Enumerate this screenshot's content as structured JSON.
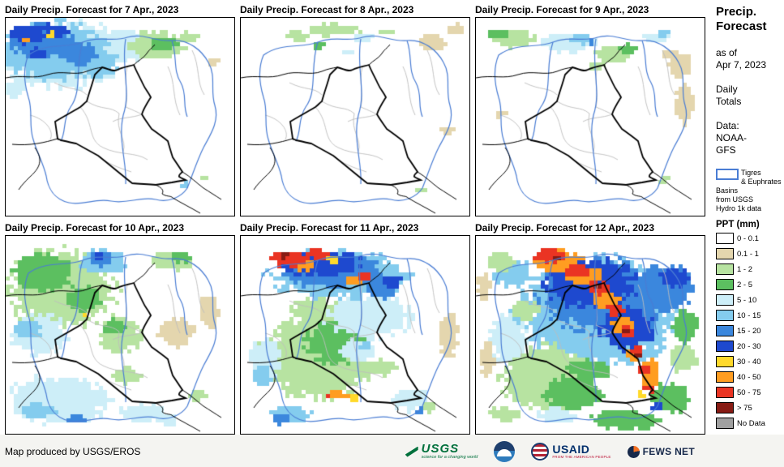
{
  "panels": [
    {
      "title": "Daily Precip. Forecast for 7 Apr., 2023",
      "blobs": [
        [
          70,
          45,
          85,
          48,
          "pcyan"
        ],
        [
          150,
          35,
          40,
          22,
          "pcyan"
        ],
        [
          12,
          88,
          14,
          12,
          "pcyan"
        ],
        [
          60,
          40,
          72,
          40,
          "lblue"
        ],
        [
          110,
          55,
          35,
          20,
          "lblue"
        ],
        [
          45,
          28,
          48,
          24,
          "mblue"
        ],
        [
          90,
          45,
          25,
          15,
          "mblue"
        ],
        [
          28,
          20,
          26,
          14,
          "blue"
        ],
        [
          62,
          16,
          20,
          10,
          "blue"
        ],
        [
          40,
          45,
          14,
          8,
          "blue"
        ],
        [
          56,
          20,
          6,
          4,
          "yellow"
        ],
        [
          24,
          28,
          5,
          3,
          "orange"
        ],
        [
          185,
          35,
          40,
          20,
          "lgreen"
        ],
        [
          195,
          32,
          18,
          10,
          "green"
        ],
        [
          228,
          24,
          16,
          8,
          "lgreen"
        ],
        [
          255,
          55,
          10,
          6,
          "tan"
        ],
        [
          220,
          206,
          9,
          5,
          "lblue"
        ],
        [
          246,
          196,
          6,
          4,
          "lgreen"
        ]
      ]
    },
    {
      "title": "Daily Precip. Forecast for 8 Apr., 2023",
      "blobs": [
        [
          115,
          15,
          35,
          9,
          "lgreen"
        ],
        [
          70,
          22,
          18,
          7,
          "lgreen"
        ],
        [
          95,
          35,
          10,
          5,
          "green"
        ],
        [
          150,
          25,
          15,
          6,
          "pcyan"
        ],
        [
          130,
          42,
          8,
          4,
          "pcyan"
        ],
        [
          235,
          30,
          22,
          12,
          "tan"
        ],
        [
          265,
          15,
          12,
          8,
          "tan"
        ],
        [
          180,
          18,
          12,
          5,
          "lgreen"
        ],
        [
          255,
          140,
          10,
          6,
          "tan"
        ],
        [
          222,
          212,
          7,
          4,
          "lgreen"
        ]
      ]
    },
    {
      "title": "Daily Precip. Forecast for 9 Apr., 2023",
      "blobs": [
        [
          45,
          25,
          32,
          14,
          "lgreen"
        ],
        [
          28,
          20,
          14,
          7,
          "green"
        ],
        [
          90,
          30,
          12,
          6,
          "pcyan"
        ],
        [
          115,
          30,
          38,
          14,
          "pcyan"
        ],
        [
          128,
          26,
          16,
          8,
          "lblue"
        ],
        [
          143,
          30,
          7,
          4,
          "mblue"
        ],
        [
          170,
          45,
          26,
          12,
          "lgreen"
        ],
        [
          150,
          60,
          10,
          5,
          "lgreen"
        ],
        [
          188,
          38,
          14,
          7,
          "green"
        ],
        [
          222,
          25,
          18,
          8,
          "pcyan"
        ],
        [
          232,
          20,
          8,
          5,
          "lblue"
        ],
        [
          252,
          60,
          16,
          18,
          "tan"
        ],
        [
          258,
          105,
          14,
          30,
          "tan"
        ],
        [
          240,
          45,
          12,
          8,
          "tan"
        ],
        [
          30,
          118,
          10,
          6,
          "tan"
        ],
        [
          232,
          200,
          8,
          5,
          "lgreen"
        ]
      ]
    },
    {
      "title": "Daily Precip. Forecast for 10 Apr., 2023",
      "blobs": [
        [
          70,
          65,
          75,
          55,
          "lgreen"
        ],
        [
          205,
          30,
          32,
          14,
          "lgreen"
        ],
        [
          140,
          122,
          32,
          26,
          "lgreen"
        ],
        [
          237,
          196,
          15,
          8,
          "lgreen"
        ],
        [
          150,
          172,
          20,
          12,
          "lgreen"
        ],
        [
          45,
          45,
          40,
          28,
          "green"
        ],
        [
          95,
          78,
          28,
          18,
          "green"
        ],
        [
          135,
          112,
          16,
          11,
          "green"
        ],
        [
          218,
          26,
          14,
          8,
          "green"
        ],
        [
          42,
          122,
          40,
          28,
          "pcyan"
        ],
        [
          65,
          202,
          72,
          33,
          "pcyan"
        ],
        [
          170,
          218,
          32,
          13,
          "pcyan"
        ],
        [
          200,
          228,
          15,
          8,
          "pcyan"
        ],
        [
          28,
          116,
          18,
          13,
          "lblue"
        ],
        [
          120,
          32,
          32,
          18,
          "lblue"
        ],
        [
          40,
          216,
          26,
          12,
          "lblue"
        ],
        [
          118,
          28,
          18,
          11,
          "mblue"
        ],
        [
          88,
          227,
          12,
          6,
          "mblue"
        ],
        [
          114,
          25,
          9,
          6,
          "blue"
        ],
        [
          210,
          120,
          26,
          20,
          "tan"
        ],
        [
          252,
          92,
          14,
          24,
          "tan"
        ],
        [
          130,
          40,
          5,
          3,
          "yellow"
        ],
        [
          96,
          96,
          5,
          3,
          "yellow"
        ]
      ]
    },
    {
      "title": "Daily Precip. Forecast for 11 Apr., 2023",
      "blobs": [
        [
          95,
          150,
          78,
          58,
          "lgreen"
        ],
        [
          90,
          92,
          32,
          20,
          "lgreen"
        ],
        [
          175,
          162,
          20,
          12,
          "lgreen"
        ],
        [
          120,
          132,
          46,
          30,
          "green"
        ],
        [
          160,
          100,
          60,
          32,
          "pcyan"
        ],
        [
          145,
          142,
          24,
          16,
          "pcyan"
        ],
        [
          30,
          152,
          24,
          28,
          "pcyan"
        ],
        [
          210,
          202,
          28,
          16,
          "pcyan"
        ],
        [
          256,
          122,
          14,
          30,
          "tan"
        ],
        [
          232,
          212,
          10,
          6,
          "lgreen"
        ],
        [
          120,
          48,
          95,
          34,
          "lblue"
        ],
        [
          26,
          172,
          14,
          14,
          "lblue"
        ],
        [
          152,
          136,
          10,
          6,
          "lblue"
        ],
        [
          60,
          221,
          30,
          13,
          "lblue"
        ],
        [
          112,
          42,
          72,
          26,
          "mblue"
        ],
        [
          50,
          226,
          15,
          8,
          "mblue"
        ],
        [
          175,
          62,
          26,
          16,
          "mblue"
        ],
        [
          222,
          216,
          8,
          5,
          "mblue"
        ],
        [
          100,
          35,
          55,
          18,
          "blue"
        ],
        [
          187,
          57,
          13,
          9,
          "blue"
        ],
        [
          112,
          30,
          9,
          5,
          "yellow"
        ],
        [
          140,
          200,
          8,
          4,
          "yellow"
        ],
        [
          78,
          36,
          16,
          8,
          "orange"
        ],
        [
          140,
          56,
          13,
          7,
          "orange"
        ],
        [
          120,
          196,
          16,
          6,
          "orange"
        ],
        [
          62,
          28,
          26,
          12,
          "red"
        ],
        [
          95,
          22,
          16,
          8,
          "red"
        ],
        [
          152,
          50,
          8,
          5,
          "red"
        ],
        [
          108,
          198,
          6,
          3,
          "red"
        ],
        [
          54,
          24,
          7,
          4,
          "maroon"
        ]
      ]
    },
    {
      "title": "Daily Precip. Forecast for 12 Apr., 2023",
      "blobs": [
        [
          150,
          95,
          108,
          78,
          "lblue"
        ],
        [
          45,
          45,
          28,
          20,
          "lblue"
        ],
        [
          160,
          75,
          90,
          52,
          "mblue"
        ],
        [
          235,
          65,
          40,
          33,
          "mblue"
        ],
        [
          140,
          58,
          65,
          36,
          "blue"
        ],
        [
          245,
          52,
          20,
          14,
          "blue"
        ],
        [
          185,
          115,
          38,
          30,
          "blue"
        ],
        [
          85,
          175,
          62,
          48,
          "lgreen"
        ],
        [
          30,
          32,
          22,
          12,
          "lgreen"
        ],
        [
          60,
          92,
          20,
          14,
          "lgreen"
        ],
        [
          255,
          150,
          20,
          22,
          "lgreen"
        ],
        [
          35,
          220,
          20,
          10,
          "lgreen"
        ],
        [
          120,
          195,
          42,
          24,
          "green"
        ],
        [
          185,
          227,
          48,
          14,
          "green"
        ],
        [
          240,
          200,
          28,
          22,
          "green"
        ],
        [
          258,
          112,
          18,
          24,
          "green"
        ],
        [
          140,
          165,
          30,
          16,
          "green"
        ],
        [
          40,
          128,
          26,
          34,
          "pcyan"
        ],
        [
          100,
          222,
          25,
          12,
          "pcyan"
        ],
        [
          14,
          150,
          10,
          26,
          "tan"
        ],
        [
          10,
          62,
          9,
          18,
          "tan"
        ],
        [
          115,
          38,
          7,
          4,
          "yellow"
        ],
        [
          162,
          74,
          6,
          4,
          "yellow"
        ],
        [
          205,
          195,
          7,
          4,
          "yellow"
        ],
        [
          100,
          30,
          34,
          14,
          "orange"
        ],
        [
          135,
          50,
          26,
          13,
          "orange"
        ],
        [
          162,
          80,
          20,
          12,
          "orange"
        ],
        [
          182,
          110,
          16,
          11,
          "orange"
        ],
        [
          196,
          145,
          13,
          10,
          "orange"
        ],
        [
          215,
          172,
          12,
          24,
          "orange"
        ],
        [
          90,
          25,
          24,
          10,
          "red"
        ],
        [
          125,
          43,
          18,
          10,
          "red"
        ],
        [
          152,
          64,
          15,
          9,
          "red"
        ],
        [
          172,
          92,
          13,
          8,
          "red"
        ],
        [
          188,
          118,
          12,
          8,
          "red"
        ],
        [
          198,
          142,
          10,
          7,
          "red"
        ],
        [
          208,
          166,
          9,
          6,
          "red"
        ],
        [
          214,
          188,
          8,
          6,
          "red"
        ],
        [
          100,
          28,
          8,
          5,
          "maroon"
        ],
        [
          150,
          62,
          7,
          4,
          "maroon"
        ],
        [
          185,
          115,
          7,
          4,
          "maroon"
        ],
        [
          200,
          148,
          6,
          4,
          "maroon"
        ],
        [
          225,
          212,
          10,
          7,
          "blue"
        ]
      ]
    }
  ],
  "sidebar": {
    "title": "Precip.\nForecast",
    "as_of": "as of\nApr 7, 2023",
    "totals": "Daily\nTotals",
    "data_source": "Data:\nNOAA-\nGFS",
    "basin_note": "Tigres\n& Euphrates\nBasins\nfrom USGS\nHydro 1k data",
    "legend_title": "PPT (mm)"
  },
  "legend": {
    "items": [
      {
        "label": "0 - 0.1",
        "color": "#ffffff"
      },
      {
        "label": "0.1 - 1",
        "color": "#e4d6ae"
      },
      {
        "label": "1 - 2",
        "color": "#b7e3a1"
      },
      {
        "label": "2 - 5",
        "color": "#5cbf60"
      },
      {
        "label": "5 - 10",
        "color": "#cdeef8"
      },
      {
        "label": "10 - 15",
        "color": "#84ccee"
      },
      {
        "label": "15 - 20",
        "color": "#3b87dd"
      },
      {
        "label": "20 - 30",
        "color": "#1e49cf"
      },
      {
        "label": "30 - 40",
        "color": "#ffd92b"
      },
      {
        "label": "40 - 50",
        "color": "#ff9d21"
      },
      {
        "label": "50 - 75",
        "color": "#ea3423"
      },
      {
        "label": "> 75",
        "color": "#871b14"
      },
      {
        "label": "No Data",
        "color": "#a0a0a0"
      }
    ]
  },
  "palette": {
    "w": "#ffffff",
    "tan": "#e4d6ae",
    "lgreen": "#b7e3a1",
    "green": "#5cbf60",
    "pcyan": "#cdeef8",
    "lblue": "#84ccee",
    "mblue": "#3b87dd",
    "blue": "#1e49cf",
    "yellow": "#ffd92b",
    "orange": "#ff9d21",
    "red": "#ea3423",
    "maroon": "#871b14",
    "nodata": "#a0a0a0"
  },
  "map_colors": {
    "basin": "#4a7dd4",
    "country": "#000000",
    "admin": "#bdbdbd"
  },
  "footer": {
    "credit": "Map produced by USGS/EROS",
    "usgs": {
      "text": "USGS",
      "tagline": "science for a changing world"
    },
    "usaid": {
      "text": "USAID",
      "tagline": "FROM THE AMERICAN PEOPLE"
    },
    "fews": {
      "text": "FEWS NET"
    }
  }
}
